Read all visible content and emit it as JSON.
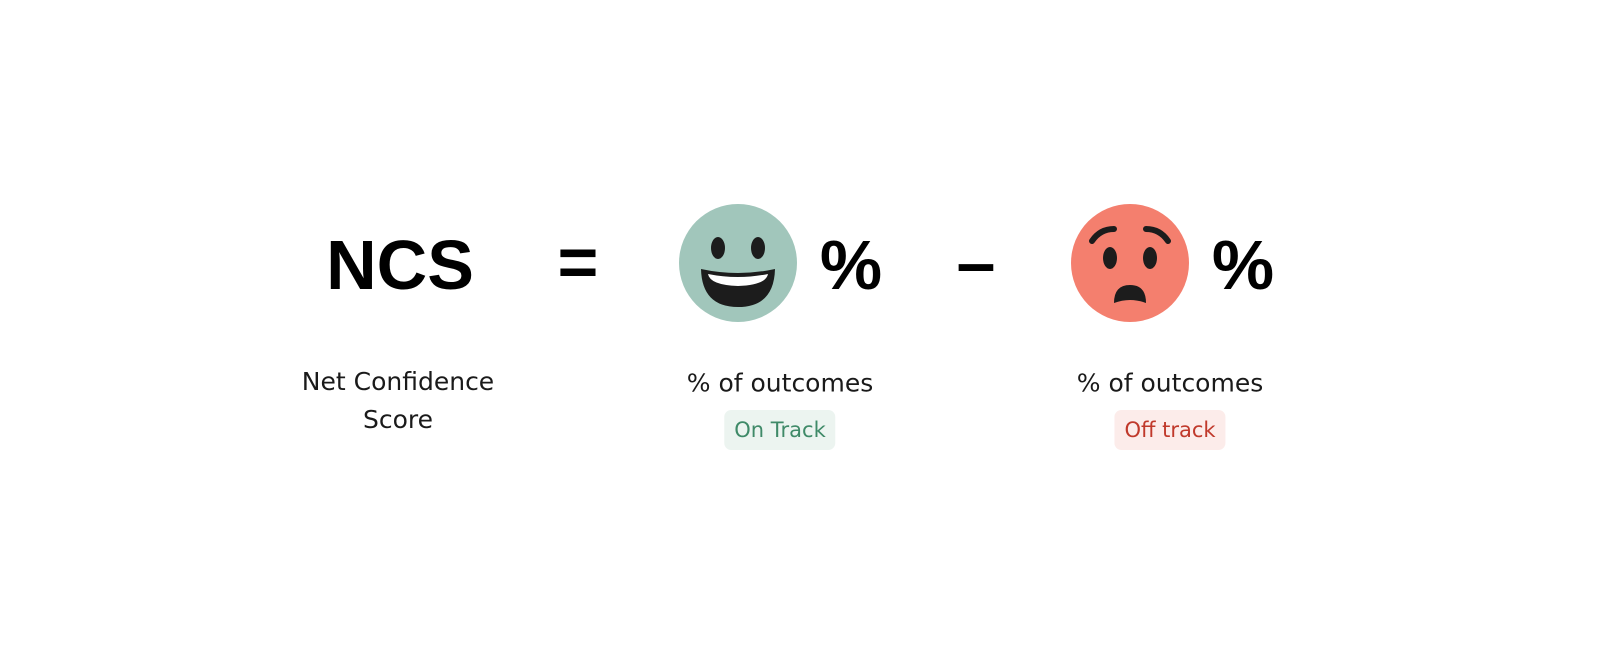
{
  "formula": {
    "lhs": "NCS",
    "equals": "=",
    "on_track_unit": "%",
    "minus": "–",
    "off_track_unit": "%"
  },
  "labels": {
    "lhs": "Net Confidence Score",
    "on_track": "% of outcomes",
    "on_track_badge": "On Track",
    "off_track": "% of outcomes",
    "off_track_badge": "Off track"
  }
}
